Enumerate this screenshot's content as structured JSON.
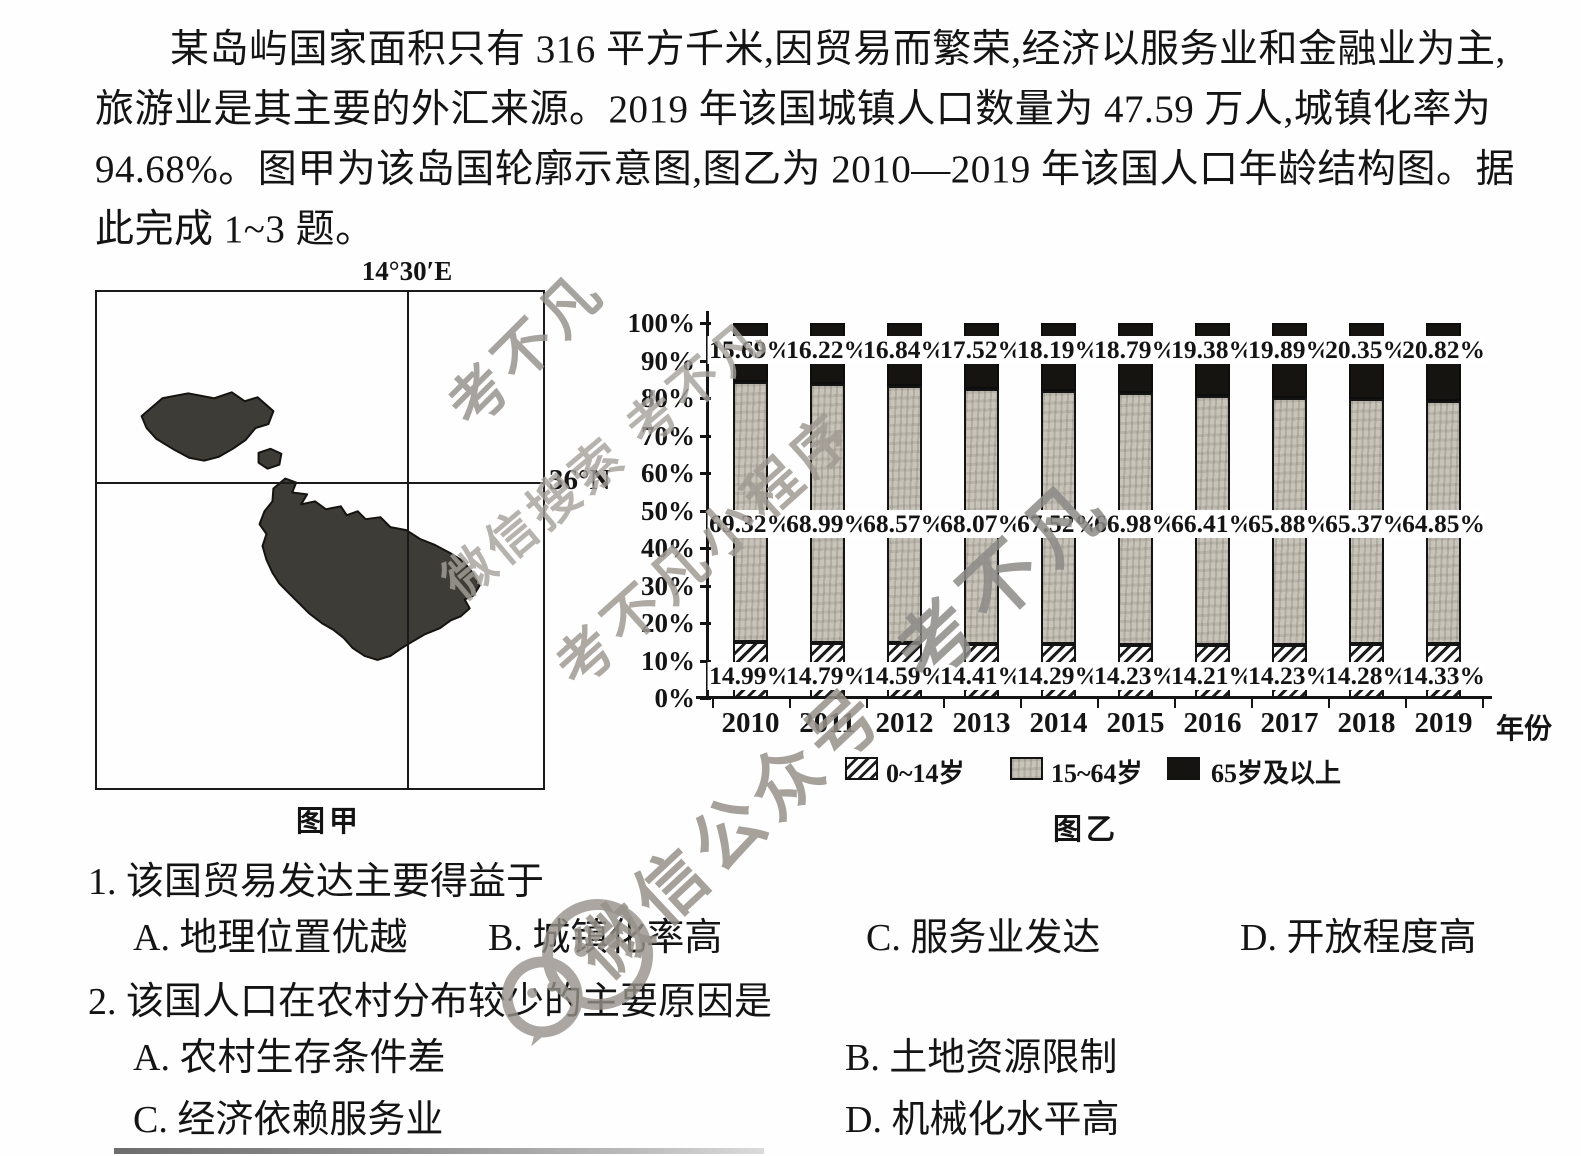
{
  "passage": {
    "line1": "某岛屿国家面积只有 316 平方千米,因贸易而繁荣,经济以服务业和金融业为主,",
    "line2": "旅游业是其主要的外汇来源。2019 年该国城镇人口数量为 47.59 万人,城镇化率为",
    "line3": "94.68%。图甲为该岛国轮廓示意图,图乙为 2010—2019 年该国人口年龄结构图。据",
    "line4": "此完成 1~3 题。"
  },
  "map": {
    "longitude_label": "14°30′E",
    "latitude_label": "36°N",
    "caption": "图甲"
  },
  "chart_data": {
    "type": "bar",
    "stacked": true,
    "caption": "图乙",
    "xlabel": "年份",
    "categories": [
      "2010",
      "2011",
      "2012",
      "2013",
      "2014",
      "2015",
      "2016",
      "2017",
      "2018",
      "2019"
    ],
    "series": [
      {
        "name": "0~14岁",
        "pattern": "hatch",
        "values": [
          14.99,
          14.79,
          14.59,
          14.41,
          14.29,
          14.23,
          14.21,
          14.23,
          14.28,
          14.33
        ]
      },
      {
        "name": "15~64岁",
        "pattern": "gray",
        "values": [
          69.32,
          68.99,
          68.57,
          68.07,
          67.52,
          66.98,
          66.41,
          65.88,
          65.37,
          64.85
        ]
      },
      {
        "name": "65岁及以上",
        "pattern": "black",
        "values": [
          15.69,
          16.22,
          16.84,
          17.52,
          18.19,
          18.79,
          19.38,
          19.89,
          20.35,
          20.82
        ]
      }
    ],
    "ylim": [
      0,
      100
    ],
    "y_tick_step": 10,
    "y_tick_suffix": "%",
    "grid": false,
    "legend_position": "bottom",
    "value_label_suffix": "%"
  },
  "questions": [
    {
      "number": "1",
      "text": "该国贸易发达主要得益于",
      "options": [
        {
          "label": "A",
          "text": "地理位置优越"
        },
        {
          "label": "B",
          "text": "城镇化率高"
        },
        {
          "label": "C",
          "text": "服务业发达"
        },
        {
          "label": "D",
          "text": "开放程度高"
        }
      ]
    },
    {
      "number": "2",
      "text": "该国人口在农村分布较少的主要原因是",
      "options": [
        {
          "label": "A",
          "text": "农村生存条件差"
        },
        {
          "label": "B",
          "text": "土地资源限制"
        },
        {
          "label": "C",
          "text": "经济依赖服务业"
        },
        {
          "label": "D",
          "text": "机械化水平高"
        }
      ]
    }
  ],
  "watermarks": [
    "考不凡",
    "微信搜索 考不凡",
    "考不凡小程序",
    "考不凡",
    "微信公众号"
  ]
}
